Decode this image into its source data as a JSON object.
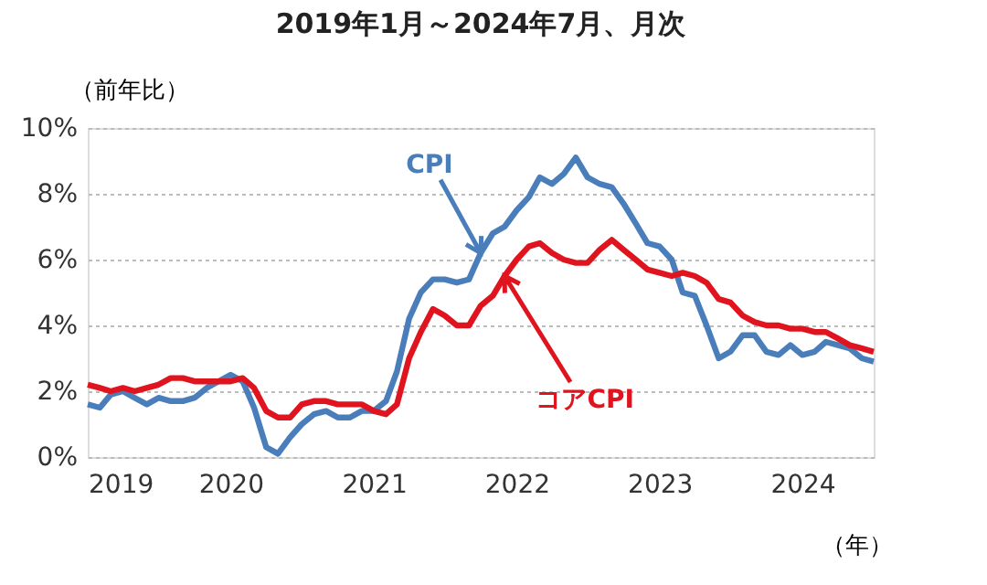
{
  "chart_data": {
    "type": "line",
    "title": "2019年1月～2024年7月、月次",
    "ylabel": "（前年比）",
    "xlabel": "（年）",
    "x": [
      "2019-01",
      "2019-02",
      "2019-03",
      "2019-04",
      "2019-05",
      "2019-06",
      "2019-07",
      "2019-08",
      "2019-09",
      "2019-10",
      "2019-11",
      "2019-12",
      "2020-01",
      "2020-02",
      "2020-03",
      "2020-04",
      "2020-05",
      "2020-06",
      "2020-07",
      "2020-08",
      "2020-09",
      "2020-10",
      "2020-11",
      "2020-12",
      "2021-01",
      "2021-02",
      "2021-03",
      "2021-04",
      "2021-05",
      "2021-06",
      "2021-07",
      "2021-08",
      "2021-09",
      "2021-10",
      "2021-11",
      "2021-12",
      "2022-01",
      "2022-02",
      "2022-03",
      "2022-04",
      "2022-05",
      "2022-06",
      "2022-07",
      "2022-08",
      "2022-09",
      "2022-10",
      "2022-11",
      "2022-12",
      "2023-01",
      "2023-02",
      "2023-03",
      "2023-04",
      "2023-05",
      "2023-06",
      "2023-07",
      "2023-08",
      "2023-09",
      "2023-10",
      "2023-11",
      "2023-12",
      "2024-01",
      "2024-02",
      "2024-03",
      "2024-04",
      "2024-05",
      "2024-06",
      "2024-07"
    ],
    "series": [
      {
        "color": "#4a7ebb",
        "values": [
          1.6,
          1.5,
          1.9,
          2.0,
          1.8,
          1.6,
          1.8,
          1.7,
          1.7,
          1.8,
          2.1,
          2.3,
          2.5,
          2.3,
          1.5,
          0.3,
          0.1,
          0.6,
          1.0,
          1.3,
          1.4,
          1.2,
          1.2,
          1.4,
          1.4,
          1.7,
          2.6,
          4.2,
          5.0,
          5.4,
          5.4,
          5.3,
          5.4,
          6.2,
          6.8,
          7.0,
          7.5,
          7.9,
          8.5,
          8.3,
          8.6,
          9.1,
          8.5,
          8.3,
          8.2,
          7.7,
          7.1,
          6.5,
          6.4,
          6.0,
          5.0,
          4.9,
          4.0,
          3.0,
          3.2,
          3.7,
          3.7,
          3.2,
          3.1,
          3.4,
          3.1,
          3.2,
          3.5,
          3.4,
          3.3,
          3.0,
          2.9
        ]
      },
      {
        "color": "#e0141e",
        "values": [
          2.2,
          2.1,
          2.0,
          2.1,
          2.0,
          2.1,
          2.2,
          2.4,
          2.4,
          2.3,
          2.3,
          2.3,
          2.3,
          2.4,
          2.1,
          1.4,
          1.2,
          1.2,
          1.6,
          1.7,
          1.7,
          1.6,
          1.6,
          1.6,
          1.4,
          1.3,
          1.6,
          3.0,
          3.8,
          4.5,
          4.3,
          4.0,
          4.0,
          4.6,
          4.9,
          5.5,
          6.0,
          6.4,
          6.5,
          6.2,
          6.0,
          5.9,
          5.9,
          6.3,
          6.6,
          6.3,
          6.0,
          5.7,
          5.6,
          5.5,
          5.6,
          5.5,
          5.3,
          4.8,
          4.7,
          4.3,
          4.1,
          4.0,
          4.0,
          3.9,
          3.9,
          3.8,
          3.8,
          3.6,
          3.4,
          3.3,
          3.2
        ]
      }
    ],
    "annotations": [
      {
        "text": "CPI",
        "x": "2021-10",
        "y": 6.2
      },
      {
        "text": "コアCPI",
        "x": "2021-12",
        "y": 5.5
      }
    ],
    "xlim": [
      "2019-01",
      "2024-07"
    ],
    "xticks": [
      {
        "value": "2019-01",
        "label": "2019"
      },
      {
        "value": "2020-01",
        "label": "2020"
      },
      {
        "value": "2021-01",
        "label": "2021"
      },
      {
        "value": "2022-01",
        "label": "2022"
      },
      {
        "value": "2023-01",
        "label": "2023"
      },
      {
        "value": "2024-01",
        "label": "2024"
      }
    ],
    "ylim": [
      0,
      10
    ],
    "yticks": [
      {
        "value": 0,
        "label": "0%"
      },
      {
        "value": 2,
        "label": "2%"
      },
      {
        "value": 4,
        "label": "4%"
      },
      {
        "value": 6,
        "label": "6%"
      },
      {
        "value": 8,
        "label": "8%"
      },
      {
        "value": 10,
        "label": "10%"
      }
    ],
    "grid": "y",
    "marker": "none",
    "line_style": "solid"
  }
}
